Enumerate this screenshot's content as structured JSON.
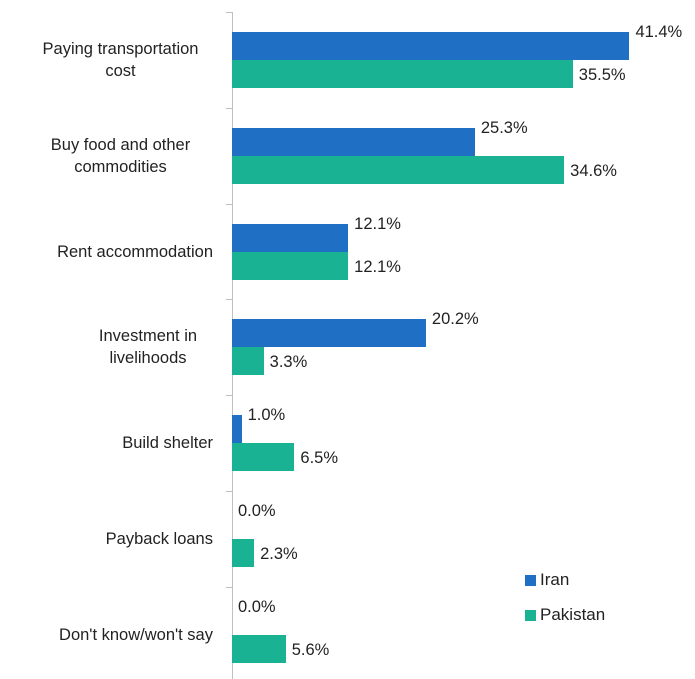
{
  "chart_data": {
    "type": "bar",
    "orientation": "horizontal",
    "categories": [
      "Paying transportation cost",
      "Buy food and other commodities",
      "Rent accommodation",
      "Investment in livelihoods",
      "Build shelter",
      "Payback loans",
      "Don't know/won't say"
    ],
    "series": [
      {
        "name": "Iran",
        "color": "#1f6fc5",
        "values": [
          41.4,
          25.3,
          12.1,
          20.2,
          1.0,
          0.0,
          0.0
        ],
        "value_labels": [
          "41.4%",
          "25.3%",
          "12.1%",
          "20.2%",
          "1.0%",
          "0.0%",
          "0.0%"
        ]
      },
      {
        "name": "Pakistan",
        "color": "#19b394",
        "values": [
          35.5,
          34.6,
          12.1,
          3.3,
          6.5,
          2.3,
          5.6
        ],
        "value_labels": [
          "35.5%",
          "34.6%",
          "12.1%",
          "3.3%",
          "6.5%",
          "2.3%",
          "5.6%"
        ]
      }
    ],
    "legend": "lower right"
  }
}
